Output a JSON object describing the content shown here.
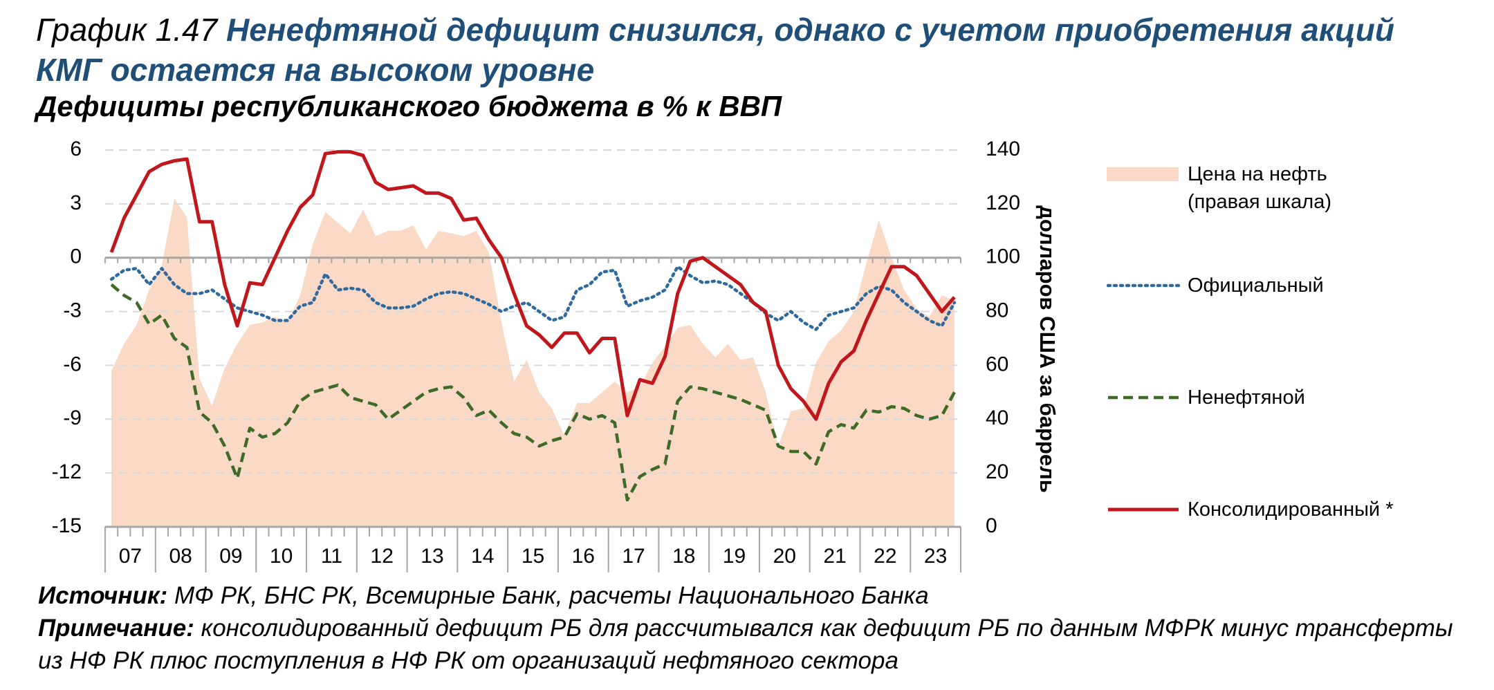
{
  "chart_data": {
    "type": "line",
    "figure_label": "График 1.47",
    "title": "Ненефтяной дефицит снизился, однако с учетом приобретения акций КМГ остается на высоком уровне",
    "subtitle": "Дефициты республиканского бюджета в % к ВВП",
    "y2_label": "долларов США за баррель",
    "source_label": "Источник:",
    "source": "МФ РК, БНС РК, Всемирные Банк, расчеты Национального Банка",
    "note_label": "Примечание:",
    "note": "консолидированный дефицит РБ для рассчитывался как дефицит РБ по данным МФРК минус трансферты из НФ РК плюс поступления в НФ РК от организаций нефтяного сектора",
    "categories": [
      null,
      "07",
      null,
      null,
      null,
      "08",
      null,
      null,
      null,
      "09",
      null,
      null,
      null,
      "10",
      null,
      null,
      null,
      "11",
      null,
      null,
      null,
      "12",
      null,
      null,
      null,
      "13",
      null,
      null,
      null,
      "14",
      null,
      null,
      null,
      "15",
      null,
      null,
      null,
      "16",
      null,
      null,
      null,
      "17",
      null,
      null,
      null,
      "18",
      null,
      null,
      null,
      "19",
      null,
      null,
      null,
      "20",
      null,
      null,
      null,
      "21",
      null,
      null,
      null,
      "22",
      null,
      null,
      null,
      "23",
      null,
      null
    ],
    "ylim": [
      -15,
      6
    ],
    "yticks": [
      -15,
      -12,
      -9,
      -6,
      -3,
      0,
      3,
      6
    ],
    "y2lim": [
      0,
      140
    ],
    "y2ticks": [
      0,
      20,
      40,
      60,
      80,
      100,
      120,
      140
    ],
    "grid": true,
    "series": [
      {
        "name": "Цена на нефть (правая шкала)",
        "style": "area",
        "axis": "y2",
        "color": "#fbd9c7",
        "values": [
          58,
          68,
          75,
          88,
          97,
          122,
          115,
          55,
          45,
          59,
          68,
          75,
          76,
          78,
          76,
          86,
          105,
          117,
          113,
          109,
          118,
          108,
          110,
          110,
          112,
          103,
          110,
          109,
          108,
          110,
          102,
          76,
          54,
          62,
          50,
          44,
          34,
          46,
          46,
          50,
          54,
          50,
          52,
          61,
          67,
          74,
          75,
          68,
          63,
          68,
          62,
          63,
          50,
          30,
          43,
          44,
          61,
          69,
          73,
          80,
          98,
          114,
          100,
          88,
          81,
          78,
          86,
          84
        ]
      },
      {
        "name": "Официальный",
        "style": "dotted",
        "color": "#2e6a9e",
        "values": [
          -1.2,
          -0.7,
          -0.6,
          -1.5,
          -0.6,
          -1.5,
          -2.0,
          -2.0,
          -1.8,
          -2.3,
          -2.8,
          -3.0,
          -3.2,
          -3.5,
          -3.5,
          -2.7,
          -2.5,
          -0.9,
          -1.8,
          -1.7,
          -1.8,
          -2.5,
          -2.8,
          -2.8,
          -2.7,
          -2.3,
          -2.0,
          -1.9,
          -2.0,
          -2.3,
          -2.6,
          -3.0,
          -2.7,
          -2.5,
          -3.0,
          -3.5,
          -3.3,
          -1.8,
          -1.5,
          -0.8,
          -0.7,
          -2.7,
          -2.4,
          -2.2,
          -1.8,
          -0.5,
          -1.0,
          -1.4,
          -1.3,
          -1.5,
          -2.0,
          -2.5,
          -3.1,
          -3.5,
          -3.0,
          -3.6,
          -4.0,
          -3.2,
          -3.0,
          -2.8,
          -2.0,
          -1.6,
          -1.8,
          -2.5,
          -3.0,
          -3.5,
          -3.8,
          -2.5
        ]
      },
      {
        "name": "Ненефтяной",
        "style": "dashed",
        "color": "#3e6b27",
        "values": [
          -1.5,
          -2.1,
          -2.5,
          -3.7,
          -3.2,
          -4.5,
          -5.0,
          -8.6,
          -9.2,
          -10.5,
          -12.3,
          -9.5,
          -10.0,
          -9.8,
          -9.2,
          -8.0,
          -7.5,
          -7.3,
          -7.1,
          -7.8,
          -8.0,
          -8.2,
          -9.0,
          -8.5,
          -8.0,
          -7.5,
          -7.3,
          -7.2,
          -7.8,
          -8.8,
          -8.5,
          -9.2,
          -9.8,
          -10.0,
          -10.5,
          -10.2,
          -10.0,
          -8.7,
          -9.0,
          -8.8,
          -9.2,
          -13.5,
          -12.2,
          -11.8,
          -11.5,
          -8.0,
          -7.2,
          -7.3,
          -7.5,
          -7.7,
          -7.9,
          -8.2,
          -8.5,
          -10.5,
          -10.8,
          -10.8,
          -11.5,
          -9.7,
          -9.3,
          -9.5,
          -8.5,
          -8.6,
          -8.3,
          -8.4,
          -8.8,
          -9.0,
          -8.8,
          -7.5
        ]
      },
      {
        "name": "Консолидированный *",
        "style": "solid",
        "color": "#c0171c",
        "values": [
          0.3,
          2.2,
          3.5,
          4.8,
          5.2,
          5.4,
          5.5,
          2.0,
          2.0,
          -1.5,
          -3.8,
          -1.4,
          -1.5,
          0.0,
          1.5,
          2.8,
          3.5,
          5.8,
          5.9,
          5.9,
          5.7,
          4.2,
          3.8,
          3.9,
          4.0,
          3.6,
          3.6,
          3.3,
          2.1,
          2.2,
          1.0,
          0.0,
          -2.0,
          -3.8,
          -4.3,
          -5.0,
          -4.2,
          -4.2,
          -5.3,
          -4.5,
          -4.5,
          -8.8,
          -6.8,
          -7.0,
          -5.5,
          -2.0,
          -0.2,
          0.0,
          -0.5,
          -1.0,
          -1.5,
          -2.5,
          -3.0,
          -6.0,
          -7.3,
          -8.0,
          -9.0,
          -7.0,
          -5.8,
          -5.2,
          -3.5,
          -2.0,
          -0.5,
          -0.5,
          -1.0,
          -2.0,
          -3.0,
          -2.2
        ]
      }
    ]
  }
}
